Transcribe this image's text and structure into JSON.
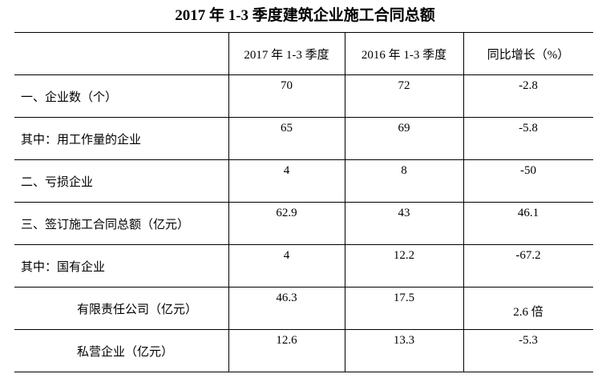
{
  "title": "2017 年 1-3 季度建筑企业施工合同总额",
  "table": {
    "header": [
      "2017 年 1-3 季度",
      "2016 年 1-3 季度",
      "同比增长（%）"
    ],
    "rows": [
      [
        "一、企业数（个）",
        70,
        72,
        -2.8
      ],
      [
        "其中：用工作量的企业",
        65,
        69,
        -5.8
      ],
      [
        "二、亏损企业",
        4,
        8,
        -50
      ],
      [
        "三、签订施工合同总额（亿元）",
        62.9,
        43,
        46.1
      ],
      [
        "其中：国有企业",
        4,
        12.2,
        -67.2
      ],
      [
        "有限责任公司（亿元）",
        46.3,
        17.5,
        "2.6 倍"
      ],
      [
        "私营企业（亿元）",
        12.6,
        13.3,
        -5.3
      ]
    ]
  }
}
